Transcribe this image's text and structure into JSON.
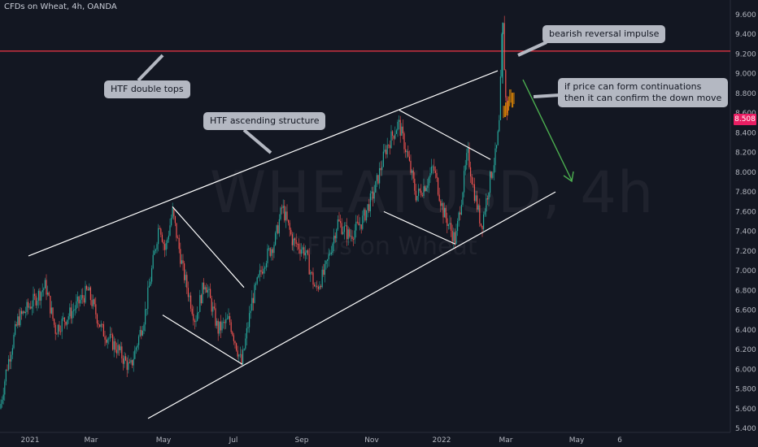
{
  "header": {
    "title": "CFDs on Wheat, 4h, OANDA"
  },
  "watermark": {
    "symbol": "WHEATUSD, 4h",
    "name": "CFDs on Wheat"
  },
  "annotations": {
    "double_tops": "HTF double tops",
    "ascending": "HTF ascending structure",
    "bearish": "bearish reversal impulse",
    "continuation_1": "if price can form continuations",
    "continuation_2": "then it can confirm the down move"
  },
  "current_price": "8.508",
  "colors": {
    "background": "#131722",
    "up_candle": "#26a69a",
    "down_candle": "#ef5350",
    "projection_candle": "#ff9800",
    "resistance_line": "#f23645",
    "trendline": "#ffffff",
    "arrow": "#4caf50",
    "price_tag": "#e91e63"
  },
  "chart_data": {
    "type": "candlestick",
    "symbol": "WHEATUSD",
    "timeframe": "4h",
    "ylim": [
      5.3,
      9.7
    ],
    "y_ticks": [
      "9.600",
      "9.400",
      "9.200",
      "9.000",
      "8.800",
      "8.600",
      "8.400",
      "8.200",
      "8.000",
      "7.800",
      "7.600",
      "7.400",
      "7.200",
      "7.000",
      "6.800",
      "6.600",
      "6.400",
      "6.200",
      "6.000",
      "5.800",
      "5.600",
      "5.400"
    ],
    "x_ticks": [
      "2021",
      "Mar",
      "May",
      "Jul",
      "Sep",
      "Nov",
      "2022",
      "Mar",
      "May",
      "6"
    ],
    "resistance_level": 9.23,
    "price_path": [
      [
        0,
        5.6
      ],
      [
        8,
        6.0
      ],
      [
        22,
        6.5
      ],
      [
        42,
        6.7
      ],
      [
        56,
        6.85
      ],
      [
        68,
        6.4
      ],
      [
        90,
        6.6
      ],
      [
        108,
        6.8
      ],
      [
        125,
        6.4
      ],
      [
        145,
        6.2
      ],
      [
        160,
        6.0
      ],
      [
        178,
        6.55
      ],
      [
        196,
        7.5
      ],
      [
        203,
        7.2
      ],
      [
        212,
        7.6
      ],
      [
        225,
        7.0
      ],
      [
        240,
        6.5
      ],
      [
        252,
        6.9
      ],
      [
        268,
        6.4
      ],
      [
        282,
        6.5
      ],
      [
        297,
        6.05
      ],
      [
        310,
        6.7
      ],
      [
        325,
        7.1
      ],
      [
        338,
        7.3
      ],
      [
        347,
        7.65
      ],
      [
        360,
        7.3
      ],
      [
        375,
        7.2
      ],
      [
        388,
        6.8
      ],
      [
        400,
        7.0
      ],
      [
        415,
        7.5
      ],
      [
        430,
        7.35
      ],
      [
        445,
        7.5
      ],
      [
        460,
        7.8
      ],
      [
        475,
        8.25
      ],
      [
        490,
        8.5
      ],
      [
        500,
        8.2
      ],
      [
        512,
        7.75
      ],
      [
        525,
        7.9
      ],
      [
        533,
        8.05
      ],
      [
        545,
        7.6
      ],
      [
        560,
        7.3
      ],
      [
        575,
        8.2
      ],
      [
        583,
        7.8
      ],
      [
        592,
        7.45
      ],
      [
        603,
        7.95
      ],
      [
        610,
        8.2
      ],
      [
        614,
        8.5
      ],
      [
        617,
        9.35
      ],
      [
        619,
        9.5
      ],
      [
        621,
        8.8
      ],
      [
        624,
        8.6
      ]
    ],
    "projection_path": [
      [
        619,
        8.6
      ],
      [
        623,
        8.65
      ],
      [
        627,
        8.8
      ],
      [
        630,
        8.75
      ],
      [
        633,
        8.7
      ]
    ],
    "trendlines": [
      {
        "name": "channel-upper",
        "from": [
          35,
          7.15
        ],
        "to": [
          612,
          9.03
        ]
      },
      {
        "name": "channel-lower",
        "from": [
          182,
          5.5
        ],
        "to": [
          683,
          7.8
        ]
      },
      {
        "name": "pullback-1-top",
        "from": [
          212,
          7.65
        ],
        "to": [
          300,
          6.83
        ]
      },
      {
        "name": "pullback-1-bottom",
        "from": [
          200,
          6.55
        ],
        "to": [
          298,
          6.05
        ]
      },
      {
        "name": "pullback-2-top",
        "from": [
          491,
          8.63
        ],
        "to": [
          603,
          8.13
        ]
      },
      {
        "name": "pullback-2-bottom",
        "from": [
          472,
          7.6
        ],
        "to": [
          560,
          7.27
        ]
      }
    ]
  }
}
